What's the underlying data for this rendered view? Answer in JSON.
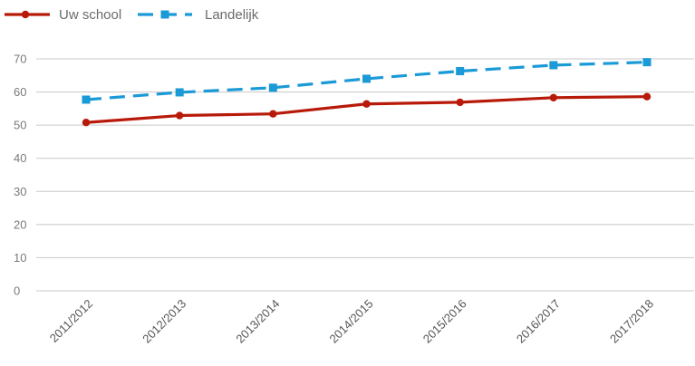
{
  "chart_data": {
    "type": "line",
    "title": "",
    "xlabel": "",
    "ylabel": "",
    "categories": [
      "2011/2012",
      "2012/2013",
      "2013/2014",
      "2014/2015",
      "2015/2016",
      "2016/2017",
      "2017/2018"
    ],
    "series": [
      {
        "name": "Uw school",
        "color": "#b81a0a",
        "style": "solid",
        "marker": "circle",
        "values": [
          50.8,
          52.9,
          53.4,
          56.4,
          56.9,
          58.3,
          58.6
        ]
      },
      {
        "name": "Landelijk",
        "color": "#1a9ad6",
        "style": "dashed",
        "marker": "square",
        "values": [
          57.7,
          59.9,
          61.3,
          64.0,
          66.3,
          68.1,
          69.0
        ]
      }
    ],
    "ylim": [
      0,
      70
    ],
    "yticks": [
      0,
      10,
      20,
      30,
      40,
      50,
      60,
      70
    ],
    "grid": true,
    "legend_position": "top-left",
    "grid_color": "#c8c8c8"
  }
}
